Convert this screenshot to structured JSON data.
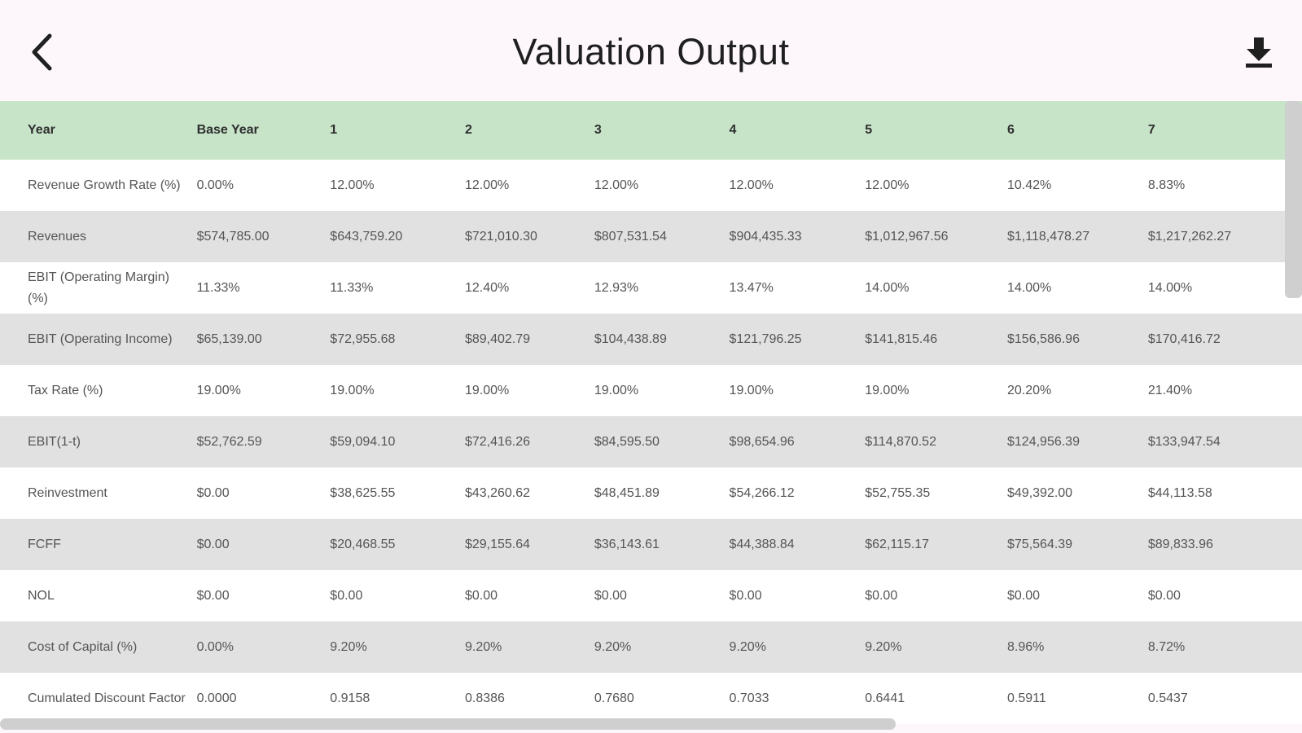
{
  "app_bar": {
    "title": "Valuation Output",
    "back_icon": "chevron-left-icon",
    "download_icon": "download-icon"
  },
  "table": {
    "columns": [
      "Year",
      "Base Year",
      "1",
      "2",
      "3",
      "4",
      "5",
      "6",
      "7"
    ],
    "rows": [
      [
        "Revenue Growth Rate (%)",
        "0.00%",
        "12.00%",
        "12.00%",
        "12.00%",
        "12.00%",
        "12.00%",
        "10.42%",
        "8.83%"
      ],
      [
        "Revenues",
        "$574,785.00",
        "$643,759.20",
        "$721,010.30",
        "$807,531.54",
        "$904,435.33",
        "$1,012,967.56",
        "$1,118,478.27",
        "$1,217,262.27"
      ],
      [
        "EBIT (Operating Margin) (%)",
        "11.33%",
        "11.33%",
        "12.40%",
        "12.93%",
        "13.47%",
        "14.00%",
        "14.00%",
        "14.00%"
      ],
      [
        "EBIT (Operating Income)",
        "$65,139.00",
        "$72,955.68",
        "$89,402.79",
        "$104,438.89",
        "$121,796.25",
        "$141,815.46",
        "$156,586.96",
        "$170,416.72"
      ],
      [
        "Tax Rate (%)",
        "19.00%",
        "19.00%",
        "19.00%",
        "19.00%",
        "19.00%",
        "19.00%",
        "20.20%",
        "21.40%"
      ],
      [
        "EBIT(1-t)",
        "$52,762.59",
        "$59,094.10",
        "$72,416.26",
        "$84,595.50",
        "$98,654.96",
        "$114,870.52",
        "$124,956.39",
        "$133,947.54"
      ],
      [
        "Reinvestment",
        "$0.00",
        "$38,625.55",
        "$43,260.62",
        "$48,451.89",
        "$54,266.12",
        "$52,755.35",
        "$49,392.00",
        "$44,113.58"
      ],
      [
        "FCFF",
        "$0.00",
        "$20,468.55",
        "$29,155.64",
        "$36,143.61",
        "$44,388.84",
        "$62,115.17",
        "$75,564.39",
        "$89,833.96"
      ],
      [
        "NOL",
        "$0.00",
        "$0.00",
        "$0.00",
        "$0.00",
        "$0.00",
        "$0.00",
        "$0.00",
        "$0.00"
      ],
      [
        "Cost of Capital (%)",
        "0.00%",
        "9.20%",
        "9.20%",
        "9.20%",
        "9.20%",
        "9.20%",
        "8.96%",
        "8.72%"
      ],
      [
        "Cumulated Discount Factor",
        "0.0000",
        "0.9158",
        "0.8386",
        "0.7680",
        "0.7033",
        "0.6441",
        "0.5911",
        "0.5437"
      ]
    ]
  },
  "colors": {
    "header_bg": "#c7e4c9",
    "row_alt_bg": "#e1e1e1",
    "app_bg": "#fdf7fc"
  }
}
